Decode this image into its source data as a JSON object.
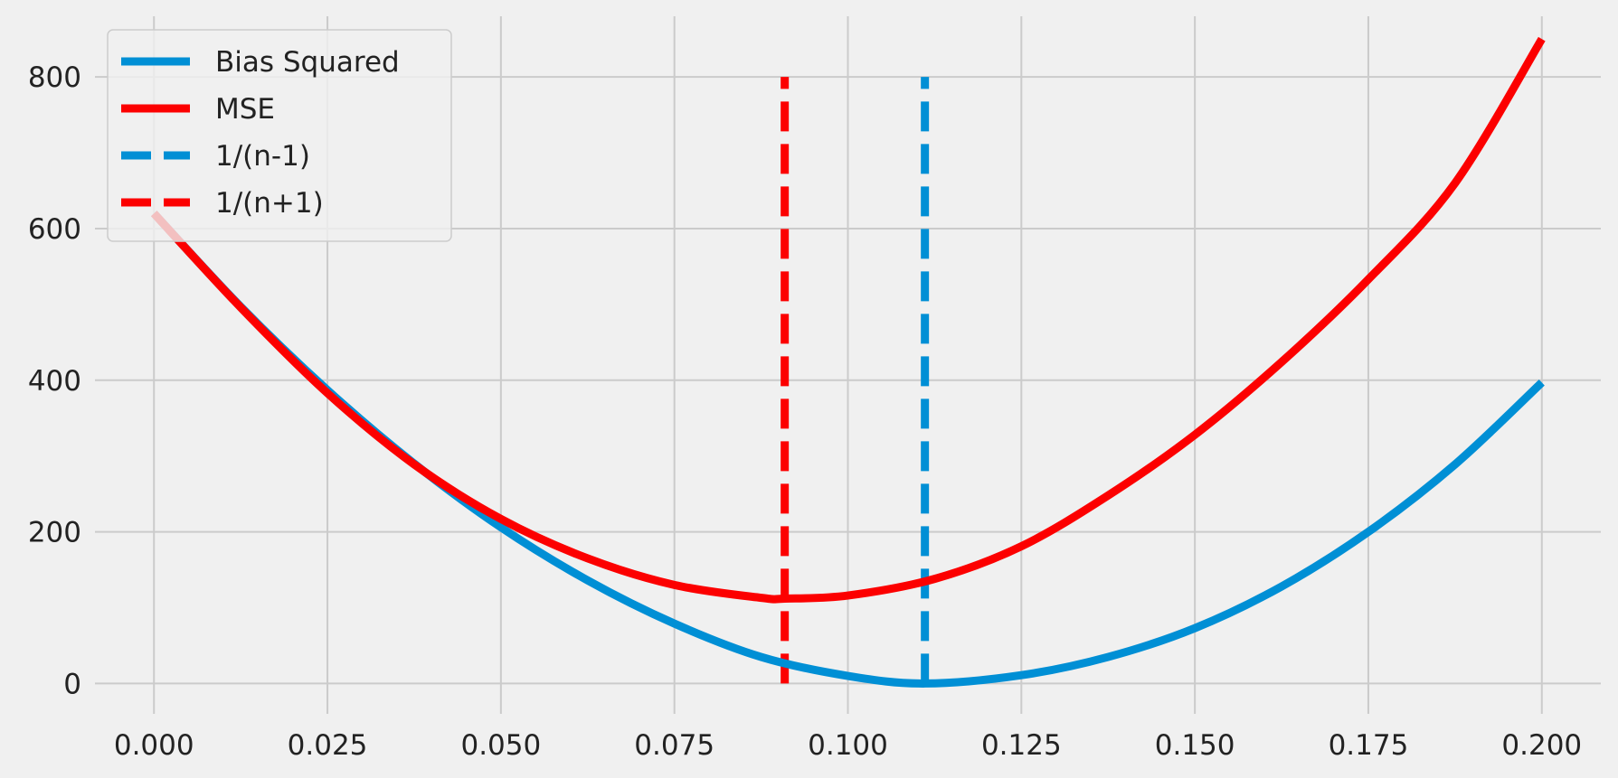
{
  "chart_data": {
    "type": "line",
    "title": "",
    "xlabel": "",
    "ylabel": "",
    "xlim": [
      -0.0085,
      0.2085
    ],
    "ylim": [
      -40,
      880
    ],
    "xticks": [
      0.0,
      0.025,
      0.05,
      0.075,
      0.1,
      0.125,
      0.15,
      0.175,
      0.2
    ],
    "xtick_labels": [
      "0.000",
      "0.025",
      "0.050",
      "0.075",
      "0.100",
      "0.125",
      "0.150",
      "0.175",
      "0.200"
    ],
    "yticks": [
      0,
      200,
      400,
      600,
      800
    ],
    "ytick_labels": [
      "0",
      "200",
      "400",
      "600",
      "800"
    ],
    "grid": true,
    "legend_position": "upper-left",
    "series": [
      {
        "name": "Bias Squared",
        "style": "solid",
        "color": "#008fd5",
        "x": [
          0.0,
          0.0125,
          0.025,
          0.0375,
          0.05,
          0.0625,
          0.075,
          0.0875,
          0.1,
          0.1111,
          0.125,
          0.1375,
          0.15,
          0.1625,
          0.175,
          0.1875,
          0.2
        ],
        "values": [
          620,
          497,
          387,
          290,
          206,
          136,
          79,
          35,
          10,
          0,
          11,
          35,
          73,
          128,
          200,
          289,
          397
        ]
      },
      {
        "name": "MSE",
        "style": "solid",
        "color": "#fc0000",
        "x": [
          0.0,
          0.0125,
          0.025,
          0.0375,
          0.05,
          0.0625,
          0.075,
          0.0875,
          0.0909,
          0.1,
          0.1125,
          0.125,
          0.1375,
          0.15,
          0.1625,
          0.175,
          0.1875,
          0.2
        ],
        "values": [
          620,
          496,
          383,
          289,
          217,
          165,
          130,
          113,
          112,
          116,
          138,
          181,
          248,
          328,
          424,
          533,
          660,
          850
        ]
      },
      {
        "name": "1/(n-1)",
        "style": "dashed",
        "color": "#008fd5",
        "x": [
          0.1111,
          0.1111
        ],
        "values": [
          0,
          800
        ]
      },
      {
        "name": "1/(n+1)",
        "style": "dashed",
        "color": "#fc0000",
        "x": [
          0.0909,
          0.0909
        ],
        "values": [
          0,
          800
        ]
      }
    ]
  }
}
